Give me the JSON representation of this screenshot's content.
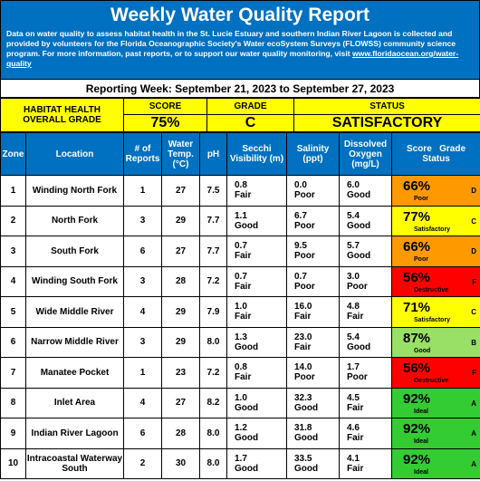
{
  "header": {
    "title": "Weekly Water Quality Report",
    "description": "Data on water quality to assess habitat health in the St. Lucie Estuary and southern Indian River Lagoon is collected and provided by volunteers for the Florida Oceanographic Society's Water ecoSystem Surveys (FLOWSS) community science program.  For more information, past reports, or to support our water quality monitoring, visit ",
    "link": "www.floridaocean.org/water-quality"
  },
  "reporting_week": "Reporting Week: September 21, 2023 to September 27, 2023",
  "summary": {
    "label": "HABITAT HEALTH OVERALL GRADE",
    "score_label": "SCORE",
    "score": "75%",
    "grade_label": "GRADE",
    "grade": "C",
    "status_label": "STATUS",
    "status": "SATISFACTORY"
  },
  "table": {
    "columns": [
      "Zone",
      "Location",
      "# of Reports",
      "Water Temp. (°C)",
      "pH",
      "Secchi Visibility (m)",
      "Salinity (ppt)",
      "Dissolved Oxygen (mg/L)"
    ],
    "score_header": {
      "score": "Score",
      "grade": "Grade",
      "status": "Status"
    },
    "rows": [
      {
        "zone": "1",
        "location": "Winding North Fork",
        "reports": "1",
        "temp": "27",
        "ph": "7.5",
        "secchi": "0.8",
        "secchi_status": "Fair",
        "salinity": "0.0",
        "salinity_status": "Poor",
        "oxygen": "6.0",
        "oxygen_status": "Good",
        "score": "66%",
        "grade": "D",
        "status": "Poor"
      },
      {
        "zone": "2",
        "location": "North Fork",
        "reports": "3",
        "temp": "29",
        "ph": "7.7",
        "secchi": "1.1",
        "secchi_status": "Good",
        "salinity": "6.7",
        "salinity_status": "Poor",
        "oxygen": "5.4",
        "oxygen_status": "Good",
        "score": "77%",
        "grade": "C",
        "status": "Satisfactory"
      },
      {
        "zone": "3",
        "location": "South Fork",
        "reports": "6",
        "temp": "27",
        "ph": "7.7",
        "secchi": "0.7",
        "secchi_status": "Fair",
        "salinity": "9.5",
        "salinity_status": "Poor",
        "oxygen": "5.7",
        "oxygen_status": "Good",
        "score": "66%",
        "grade": "D",
        "status": "Poor"
      },
      {
        "zone": "4",
        "location": "Winding South Fork",
        "reports": "3",
        "temp": "28",
        "ph": "7.2",
        "secchi": "0.7",
        "secchi_status": "Fair",
        "salinity": "0.7",
        "salinity_status": "Poor",
        "oxygen": "3.0",
        "oxygen_status": "Poor",
        "score": "56%",
        "grade": "F",
        "status": "Destructive"
      },
      {
        "zone": "5",
        "location": "Wide Middle River",
        "reports": "4",
        "temp": "29",
        "ph": "7.9",
        "secchi": "1.0",
        "secchi_status": "Fair",
        "salinity": "16.0",
        "salinity_status": "Fair",
        "oxygen": "4.8",
        "oxygen_status": "Fair",
        "score": "71%",
        "grade": "C",
        "status": "Satisfactory"
      },
      {
        "zone": "6",
        "location": "Narrow Middle River",
        "reports": "3",
        "temp": "29",
        "ph": "8.0",
        "secchi": "1.3",
        "secchi_status": "Good",
        "salinity": "23.0",
        "salinity_status": "Fair",
        "oxygen": "5.4",
        "oxygen_status": "Good",
        "score": "87%",
        "grade": "B",
        "status": "Good"
      },
      {
        "zone": "7",
        "location": "Manatee Pocket",
        "reports": "1",
        "temp": "23",
        "ph": "7.2",
        "secchi": "0.8",
        "secchi_status": "Fair",
        "salinity": "14.0",
        "salinity_status": "Poor",
        "oxygen": "1.7",
        "oxygen_status": "Poor",
        "score": "56%",
        "grade": "F",
        "status": "Destructive"
      },
      {
        "zone": "8",
        "location": "Inlet Area",
        "reports": "4",
        "temp": "27",
        "ph": "8.2",
        "secchi": "1.0",
        "secchi_status": "Good",
        "salinity": "32.3",
        "salinity_status": "Good",
        "oxygen": "4.5",
        "oxygen_status": "Fair",
        "score": "92%",
        "grade": "A",
        "status": "Ideal"
      },
      {
        "zone": "9",
        "location": "Indian River Lagoon",
        "reports": "6",
        "temp": "28",
        "ph": "8.0",
        "secchi": "1.2",
        "secchi_status": "Good",
        "salinity": "31.8",
        "salinity_status": "Good",
        "oxygen": "4.6",
        "oxygen_status": "Fair",
        "score": "92%",
        "grade": "A",
        "status": "Ideal"
      },
      {
        "zone": "10",
        "location": "Intracoastal Waterway South",
        "reports": "2",
        "temp": "30",
        "ph": "8.0",
        "secchi": "1.7",
        "secchi_status": "Good",
        "salinity": "33.5",
        "salinity_status": "Good",
        "oxygen": "4.1",
        "oxygen_status": "Fair",
        "score": "92%",
        "grade": "A",
        "status": "Ideal"
      }
    ]
  }
}
